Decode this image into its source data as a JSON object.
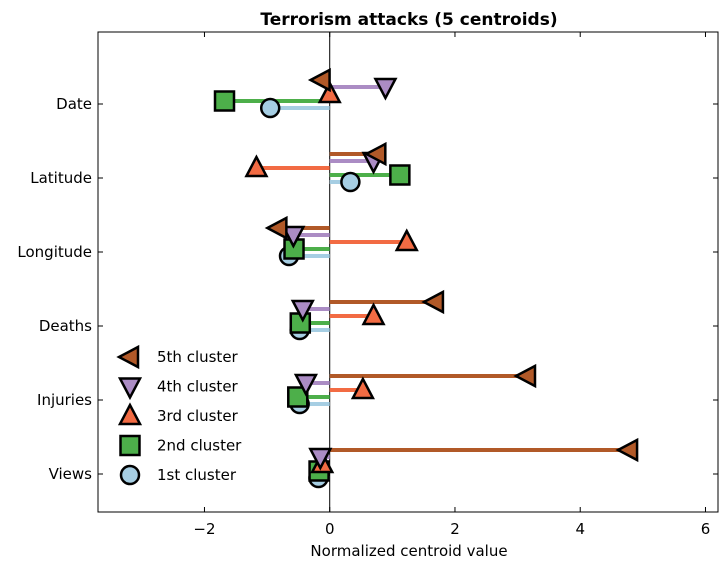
{
  "chart_data": {
    "type": "lollipop-horizontal",
    "title": "Terrorism attacks (5 centroids)",
    "xlabel": "Normalized centroid value",
    "ylabel": "",
    "xlim": [
      -3.7,
      6.2
    ],
    "xticks": [
      -2,
      0,
      2,
      4,
      6
    ],
    "xtick_labels": [
      "−2",
      "0",
      "2",
      "4",
      "6"
    ],
    "categories": [
      "Date",
      "Latitude",
      "Longitude",
      "Deaths",
      "Injuries",
      "Views"
    ],
    "grid": false,
    "legend_position": "lower-left",
    "series": [
      {
        "name": "1st cluster",
        "marker": "circle",
        "color": "#a6cee3",
        "values": [
          -0.95,
          0.33,
          -0.65,
          -0.48,
          -0.48,
          -0.18
        ]
      },
      {
        "name": "2nd cluster",
        "marker": "square",
        "color": "#4daf4a",
        "values": [
          -1.68,
          1.12,
          -0.57,
          -0.47,
          -0.51,
          -0.17
        ]
      },
      {
        "name": "3rd cluster",
        "marker": "triangle-up",
        "color": "#f26b43",
        "values": [
          0.0,
          -1.17,
          1.23,
          0.7,
          0.53,
          -0.12
        ]
      },
      {
        "name": "4th cluster",
        "marker": "triangle-down",
        "color": "#ab8cc4",
        "values": [
          0.89,
          0.7,
          -0.58,
          -0.43,
          -0.38,
          -0.15
        ]
      },
      {
        "name": "5th cluster",
        "marker": "triangle-left",
        "color": "#b15928",
        "values": [
          -0.13,
          0.76,
          -0.82,
          1.68,
          3.15,
          4.78
        ]
      }
    ]
  }
}
